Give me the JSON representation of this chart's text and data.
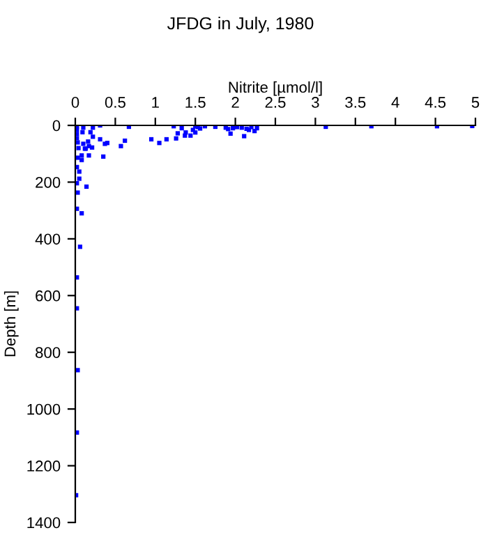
{
  "chart_data": {
    "type": "scatter",
    "title": "JFDG in July, 1980",
    "xlabel": "Nitrite [µmol/l]",
    "ylabel": "Depth [m]",
    "series": [
      {
        "color": "#0000ff",
        "x": [
          0.67,
          1.23,
          1.33,
          1.5,
          1.53,
          1.62,
          1.75,
          1.88,
          1.97,
          2.02,
          2.08,
          2.14,
          2.2,
          2.27,
          3.13,
          3.7,
          4.52,
          4.96,
          0.95,
          1.05,
          1.14,
          1.26,
          1.28,
          1.38,
          1.37,
          1.44,
          1.47,
          1.5,
          1.56,
          1.94,
          2.11,
          2.17,
          2.24,
          1.91,
          0.62,
          0.57,
          0.4,
          0.31,
          0.22,
          0.1,
          0.22,
          0.35,
          0.17,
          0.13,
          0.14,
          0.03,
          0.02,
          0.08,
          0.06,
          0.02,
          0.02,
          0.03,
          0.02,
          0.01,
          0.02,
          0.05,
          0.02,
          0.05,
          0.03,
          0.08,
          0.1,
          0.16,
          0.19,
          0.31,
          0.09,
          0.37,
          0.17,
          0.21,
          0.12,
          0.08,
          0.02,
          0.02,
          0.02,
          0.02,
          0.03,
          0.04
        ],
        "values": [
          5,
          3,
          10,
          3,
          6,
          3,
          5,
          8,
          10,
          6,
          8,
          12,
          6,
          10,
          5,
          3,
          3,
          2,
          49,
          62,
          49,
          46,
          28,
          25,
          36,
          36,
          16,
          25,
          11,
          29,
          38,
          16,
          20,
          13,
          54,
          73,
          62,
          49,
          40,
          8,
          8,
          110,
          106,
          82,
          216,
          237,
          294,
          310,
          428,
          536,
          645,
          863,
          1083,
          1304,
          147,
          163,
          204,
          188,
          114,
          122,
          65,
          57,
          24,
          0,
          24,
          65,
          73,
          78,
          82,
          106,
          3,
          15,
          30,
          45,
          60,
          80
        ]
      }
    ],
    "xlim": [
      0,
      5
    ],
    "xticks": [
      0,
      0.5,
      1,
      1.5,
      2,
      2.5,
      3,
      3.5,
      4,
      4.5,
      5
    ],
    "ylim": [
      1400,
      0
    ],
    "yticks": [
      0,
      200,
      400,
      600,
      800,
      1000,
      1200,
      1400
    ],
    "marker": "square",
    "grid": false,
    "legend": false
  }
}
